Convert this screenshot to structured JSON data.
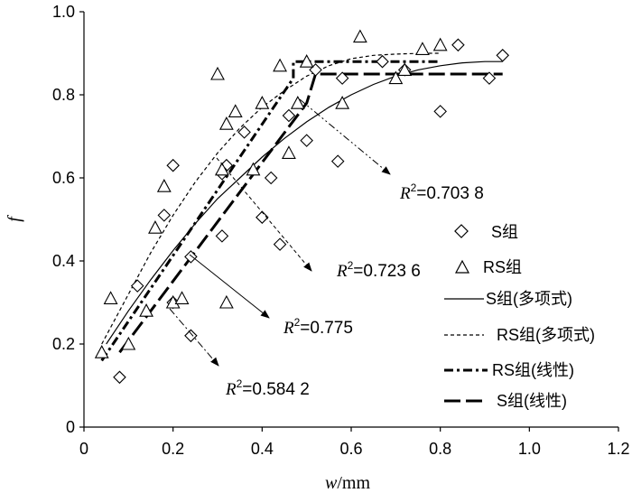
{
  "chart_data": {
    "type": "scatter",
    "xlabel": "w/mm",
    "ylabel": "f",
    "xlim": [
      0,
      1.2
    ],
    "ylim": [
      0,
      1.0
    ],
    "xticks": [
      "0",
      "0.2",
      "0.4",
      "0.6",
      "0.8",
      "1.0",
      "1.2"
    ],
    "yticks": [
      "0",
      "0.2",
      "0.4",
      "0.6",
      "0.8",
      "1.0"
    ],
    "grid": false,
    "legend_position": "right",
    "series": [
      {
        "name": "S组",
        "marker": "diamond",
        "points": [
          [
            0.08,
            0.12
          ],
          [
            0.12,
            0.34
          ],
          [
            0.18,
            0.51
          ],
          [
            0.2,
            0.63
          ],
          [
            0.2,
            0.3
          ],
          [
            0.24,
            0.41
          ],
          [
            0.24,
            0.22
          ],
          [
            0.31,
            0.61
          ],
          [
            0.31,
            0.46
          ],
          [
            0.32,
            0.63
          ],
          [
            0.36,
            0.71
          ],
          [
            0.4,
            0.505
          ],
          [
            0.42,
            0.6
          ],
          [
            0.44,
            0.44
          ],
          [
            0.46,
            0.75
          ],
          [
            0.5,
            0.69
          ],
          [
            0.52,
            0.86
          ],
          [
            0.57,
            0.64
          ],
          [
            0.58,
            0.84
          ],
          [
            0.67,
            0.88
          ],
          [
            0.72,
            0.86
          ],
          [
            0.8,
            0.76
          ],
          [
            0.84,
            0.92
          ],
          [
            0.91,
            0.84
          ],
          [
            0.94,
            0.895
          ]
        ]
      },
      {
        "name": "RS组",
        "marker": "triangle",
        "points": [
          [
            0.04,
            0.18
          ],
          [
            0.06,
            0.31
          ],
          [
            0.1,
            0.2
          ],
          [
            0.14,
            0.28
          ],
          [
            0.16,
            0.48
          ],
          [
            0.18,
            0.58
          ],
          [
            0.2,
            0.3
          ],
          [
            0.22,
            0.31
          ],
          [
            0.3,
            0.85
          ],
          [
            0.31,
            0.62
          ],
          [
            0.32,
            0.73
          ],
          [
            0.32,
            0.3
          ],
          [
            0.34,
            0.76
          ],
          [
            0.38,
            0.62
          ],
          [
            0.4,
            0.78
          ],
          [
            0.44,
            0.87
          ],
          [
            0.46,
            0.66
          ],
          [
            0.48,
            0.78
          ],
          [
            0.5,
            0.88
          ],
          [
            0.58,
            0.78
          ],
          [
            0.62,
            0.94
          ],
          [
            0.7,
            0.84
          ],
          [
            0.72,
            0.86
          ],
          [
            0.76,
            0.91
          ],
          [
            0.8,
            0.92
          ]
        ]
      },
      {
        "name": "S组(多项式)",
        "line": "solid",
        "r2": "0.775",
        "points": [
          [
            0.05,
            0.2
          ],
          [
            0.1,
            0.28
          ],
          [
            0.15,
            0.355
          ],
          [
            0.2,
            0.425
          ],
          [
            0.25,
            0.49
          ],
          [
            0.3,
            0.55
          ],
          [
            0.35,
            0.6
          ],
          [
            0.4,
            0.65
          ],
          [
            0.45,
            0.695
          ],
          [
            0.5,
            0.735
          ],
          [
            0.55,
            0.77
          ],
          [
            0.6,
            0.8
          ],
          [
            0.65,
            0.825
          ],
          [
            0.7,
            0.845
          ],
          [
            0.75,
            0.86
          ],
          [
            0.8,
            0.87
          ],
          [
            0.85,
            0.877
          ],
          [
            0.9,
            0.88
          ],
          [
            0.94,
            0.88
          ]
        ]
      },
      {
        "name": "RS组(多项式)",
        "line": "dashed",
        "r2": "0.723 6",
        "points": [
          [
            0.04,
            0.2
          ],
          [
            0.1,
            0.32
          ],
          [
            0.15,
            0.42
          ],
          [
            0.2,
            0.51
          ],
          [
            0.25,
            0.59
          ],
          [
            0.3,
            0.66
          ],
          [
            0.35,
            0.72
          ],
          [
            0.4,
            0.77
          ],
          [
            0.45,
            0.81
          ],
          [
            0.5,
            0.845
          ],
          [
            0.55,
            0.87
          ],
          [
            0.6,
            0.887
          ],
          [
            0.65,
            0.895
          ],
          [
            0.7,
            0.898
          ],
          [
            0.76,
            0.9
          ],
          [
            0.8,
            0.9
          ]
        ]
      },
      {
        "name": "RS组(线性)",
        "line": "dash-dot",
        "r2": "0.703 8",
        "points": [
          [
            0.04,
            0.16
          ],
          [
            0.47,
            0.84
          ],
          [
            0.47,
            0.88
          ],
          [
            0.8,
            0.88
          ]
        ]
      },
      {
        "name": "S组(线性)",
        "line": "long-dash",
        "r2": "0.584 2",
        "points": [
          [
            0.08,
            0.18
          ],
          [
            0.5,
            0.78
          ],
          [
            0.52,
            0.85
          ],
          [
            0.94,
            0.85
          ]
        ]
      }
    ],
    "annotations": [
      {
        "r2_label": "R",
        "r2_sup": "2",
        "r2_value": "=0.703 8"
      },
      {
        "r2_label": "R",
        "r2_sup": "2",
        "r2_value": "=0.723 6"
      },
      {
        "r2_label": "R",
        "r2_sup": "2",
        "r2_value": "=0.775"
      },
      {
        "r2_label": "R",
        "r2_sup": "2",
        "r2_value": "=0.584 2"
      }
    ]
  }
}
